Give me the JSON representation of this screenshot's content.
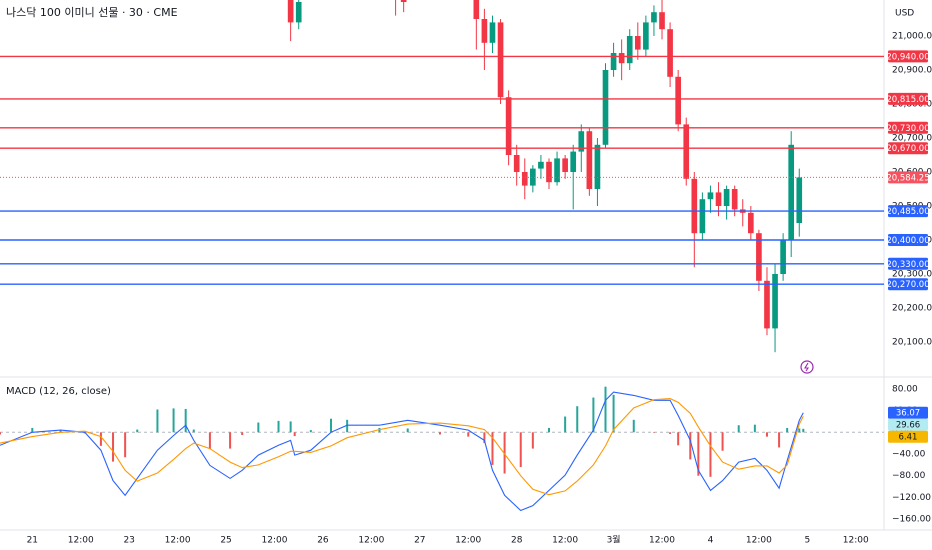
{
  "header": {
    "title": "나스닥 100 이미니 선물 · 30 · CME",
    "currency": "USD"
  },
  "chart_data": [
    {
      "type": "candlestick",
      "x": [
        64,
        66,
        90,
        92,
        110,
        112,
        114,
        116,
        118,
        120,
        122,
        124,
        126,
        128,
        130,
        132,
        134,
        136,
        138,
        140,
        142,
        144,
        146,
        148,
        150,
        152,
        154,
        156,
        158,
        160,
        162,
        164,
        166,
        168,
        170,
        172,
        174,
        176,
        178,
        180,
        182,
        184,
        186,
        188,
        190
      ],
      "open": [
        21150,
        21040,
        21150,
        21120,
        21150,
        21050,
        20980,
        21040,
        20820,
        20650,
        20600,
        20560,
        20610,
        20630,
        20570,
        20640,
        20600,
        20660,
        20720,
        20550,
        20680,
        20900,
        20950,
        20920,
        21000,
        20960,
        21040,
        21070,
        21020,
        20880,
        20740,
        20580,
        20420,
        20520,
        20540,
        20500,
        20550,
        20490,
        20480,
        20420,
        20280,
        20140,
        20300,
        20400,
        20450
      ],
      "high": [
        21160,
        21120,
        21160,
        21140,
        21160,
        21080,
        21060,
        21050,
        20840,
        20680,
        20640,
        20620,
        20650,
        20640,
        20660,
        20650,
        20680,
        20740,
        20730,
        20700,
        20920,
        20980,
        20990,
        21020,
        21040,
        21060,
        21090,
        21110,
        21040,
        20900,
        20760,
        20600,
        20540,
        20560,
        20570,
        20560,
        20560,
        20520,
        20500,
        20430,
        20320,
        20330,
        20420,
        20720,
        20610
      ],
      "low": [
        20985,
        21020,
        21060,
        21070,
        20960,
        20900,
        20950,
        20800,
        20620,
        20560,
        20520,
        20540,
        20580,
        20550,
        20560,
        20580,
        20490,
        20600,
        20530,
        20500,
        20670,
        20880,
        20870,
        20900,
        20930,
        20940,
        21000,
        20990,
        20850,
        20720,
        20560,
        20320,
        20400,
        20480,
        20470,
        20460,
        20470,
        20440,
        20400,
        20250,
        20120,
        20070,
        20280,
        20350,
        20410
      ],
      "close": [
        21040,
        21100,
        21120,
        21100,
        21050,
        20980,
        21040,
        20820,
        20650,
        20600,
        20560,
        20610,
        20630,
        20570,
        20640,
        20600,
        20660,
        20720,
        20550,
        20680,
        20900,
        20950,
        20920,
        21000,
        20960,
        21040,
        21070,
        21020,
        20880,
        20740,
        20580,
        20420,
        20520,
        20540,
        20500,
        20550,
        20490,
        20480,
        20420,
        20280,
        20140,
        20300,
        20400,
        20680,
        20584
      ],
      "up_color": "#089981",
      "down_color": "#f23645",
      "xlim": [
        -8,
        210
      ],
      "ylim": [
        20000,
        21100
      ],
      "grid": false,
      "xticks": [
        {
          "value": 0,
          "label": "21"
        },
        {
          "value": 12,
          "label": "12:00"
        },
        {
          "value": 24,
          "label": "23"
        },
        {
          "value": 36,
          "label": "12:00"
        },
        {
          "value": 48,
          "label": "25"
        },
        {
          "value": 60,
          "label": "12:00"
        },
        {
          "value": 72,
          "label": "26"
        },
        {
          "value": 84,
          "label": "12:00"
        },
        {
          "value": 96,
          "label": "27"
        },
        {
          "value": 108,
          "label": "12:00"
        },
        {
          "value": 120,
          "label": "28"
        },
        {
          "value": 132,
          "label": "12:00"
        },
        {
          "value": 144,
          "label": "3월"
        },
        {
          "value": 156,
          "label": "12:00"
        },
        {
          "value": 168,
          "label": "4"
        },
        {
          "value": 180,
          "label": "12:00"
        },
        {
          "value": 192,
          "label": "5"
        },
        {
          "value": 204,
          "label": "12:00"
        }
      ],
      "yticks": [
        {
          "value": 21000,
          "label": "21,000.00"
        },
        {
          "value": 20900,
          "label": "20,900.00"
        },
        {
          "value": 20800,
          "label": "20,800.00"
        },
        {
          "value": 20700,
          "label": "20,700.00"
        },
        {
          "value": 20600,
          "label": "20,600.00"
        },
        {
          "value": 20500,
          "label": "20,500.00"
        },
        {
          "value": 20400,
          "label": "20,400.00"
        },
        {
          "value": 20300,
          "label": "20,300.00"
        },
        {
          "value": 20200,
          "label": "20,200.00"
        },
        {
          "value": 20100,
          "label": "20,100.00"
        }
      ],
      "levels": [
        {
          "value": 20940,
          "label": "20,940.00",
          "color": "#f23645"
        },
        {
          "value": 20815,
          "label": "20,815.00",
          "color": "#f23645"
        },
        {
          "value": 20730,
          "label": "20,730.00",
          "color": "#f23645"
        },
        {
          "value": 20670,
          "label": "20,670.00",
          "color": "#f23645"
        },
        {
          "value": 20485,
          "label": "20,485.00",
          "color": "#2962ff"
        },
        {
          "value": 20400,
          "label": "20,400.00",
          "color": "#2962ff"
        },
        {
          "value": 20330,
          "label": "20,330.00",
          "color": "#2962ff"
        },
        {
          "value": 20270,
          "label": "20,270.00",
          "color": "#2962ff"
        }
      ],
      "last_price": {
        "value": 20584.25,
        "label": "20,584.25",
        "color": "#f7525f"
      }
    },
    {
      "type": "macd",
      "title": "MACD (12, 26, close)",
      "x": [
        -8,
        0,
        7,
        13,
        17,
        20,
        23,
        26,
        31,
        35,
        38,
        40,
        44,
        49,
        52,
        56,
        61,
        64,
        65,
        69,
        74,
        78,
        86,
        93,
        101,
        108,
        112,
        114,
        117,
        121,
        124,
        128,
        132,
        135,
        139,
        142,
        144,
        149,
        154,
        158,
        160,
        163,
        165,
        168,
        171,
        175,
        179,
        182,
        185,
        187,
        190,
        191
      ],
      "xlim": [
        -8,
        210
      ],
      "ylim": [
        -180,
        100
      ],
      "yticks": [
        {
          "value": 80,
          "label": "80.00"
        },
        {
          "value": 40,
          "label": "40.00"
        },
        {
          "value": 0,
          "label": "0.00"
        },
        {
          "value": -40,
          "label": "−40.00"
        },
        {
          "value": -80,
          "label": "−80.00"
        },
        {
          "value": -120,
          "label": "−120.00"
        },
        {
          "value": -160,
          "label": "−160.00"
        }
      ],
      "series": [
        {
          "color": "#2962ff",
          "badge_color": "#2962ff",
          "values": [
            -24,
            0,
            4,
            0,
            -33,
            -89,
            -116,
            -85,
            -33,
            -6,
            13,
            -15,
            -61,
            -85,
            -70,
            -42,
            -24,
            -15,
            -42,
            -33,
            0,
            13,
            13,
            22,
            13,
            4,
            -15,
            -70,
            -116,
            -144,
            -135,
            -107,
            -79,
            -42,
            4,
            59,
            74,
            68,
            59,
            59,
            31,
            -15,
            -70,
            -107,
            -89,
            -55,
            -48,
            -70,
            -103,
            -52,
            22,
            36.07
          ]
        },
        {
          "color": "#ff9800",
          "badge_color": "#b2ebf2",
          "values": [
            -20,
            -8,
            0,
            2,
            -8,
            -35,
            -70,
            -90,
            -75,
            -50,
            -30,
            -20,
            -30,
            -55,
            -65,
            -60,
            -45,
            -35,
            -35,
            -37,
            -25,
            -10,
            5,
            15,
            17,
            12,
            5,
            -10,
            -40,
            -80,
            -105,
            -115,
            -108,
            -90,
            -60,
            -25,
            5,
            45,
            60,
            62,
            55,
            35,
            10,
            -25,
            -55,
            -68,
            -62,
            -62,
            -75,
            -60,
            15,
            29.66
          ]
        }
      ],
      "histogram": {
        "up_color": "#26a69a",
        "down_color": "#ef5350",
        "badge_color": "#f5b700",
        "values": [
          -4,
          8,
          4,
          -2,
          -25,
          -54,
          -46,
          5,
          42,
          44,
          43,
          5,
          -31,
          -30,
          -5,
          18,
          21,
          20,
          -7,
          4,
          25,
          23,
          8,
          7,
          -4,
          -8,
          -20,
          -60,
          -76,
          -64,
          -30,
          8,
          29,
          48,
          64,
          84,
          69,
          23,
          -1,
          -3,
          -24,
          -50,
          -80,
          -82,
          -34,
          13,
          14,
          -8,
          -28,
          8,
          7,
          6.41
        ]
      }
    }
  ]
}
